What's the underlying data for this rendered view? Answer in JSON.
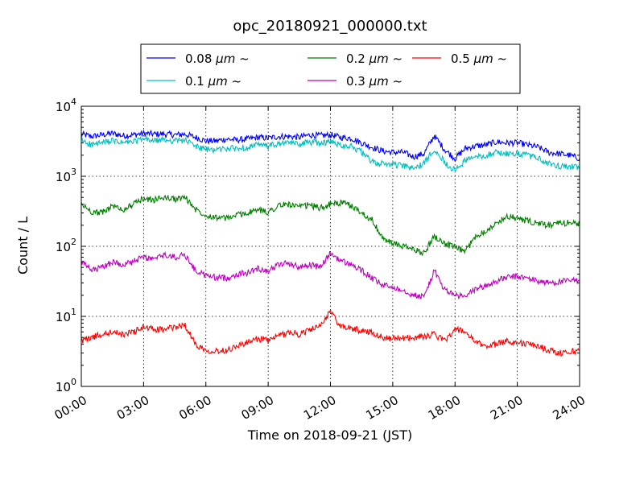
{
  "chart_data": {
    "type": "line",
    "title": "opc_20180921_000000.txt",
    "xlabel": "Time on 2018-09-21 (JST)",
    "ylabel": "Count / L",
    "x_unit": "hours",
    "xlim": [
      0,
      24
    ],
    "ylim": [
      1,
      10000
    ],
    "yscale": "log",
    "grid": true,
    "legend_placement": "top-center",
    "x_ticks": [
      {
        "value": 0,
        "label": "00:00"
      },
      {
        "value": 3,
        "label": "03:00"
      },
      {
        "value": 6,
        "label": "06:00"
      },
      {
        "value": 9,
        "label": "09:00"
      },
      {
        "value": 12,
        "label": "12:00"
      },
      {
        "value": 15,
        "label": "15:00"
      },
      {
        "value": 18,
        "label": "18:00"
      },
      {
        "value": 21,
        "label": "21:00"
      },
      {
        "value": 24,
        "label": "24:00"
      }
    ],
    "y_ticks": [
      {
        "value": 1,
        "base": "10",
        "exp": "0"
      },
      {
        "value": 10,
        "base": "10",
        "exp": "1"
      },
      {
        "value": 100,
        "base": "10",
        "exp": "2"
      },
      {
        "value": 1000,
        "base": "10",
        "exp": "3"
      },
      {
        "value": 10000,
        "base": "10",
        "exp": "4"
      }
    ],
    "x": [
      0,
      0.5,
      1,
      1.5,
      2,
      2.5,
      3,
      3.5,
      4,
      4.5,
      5,
      5.5,
      6,
      6.5,
      7,
      7.5,
      8,
      8.5,
      9,
      9.5,
      10,
      10.5,
      11,
      11.5,
      12,
      12.5,
      13,
      13.5,
      14,
      14.5,
      15,
      15.5,
      16,
      16.5,
      17,
      17.5,
      18,
      18.5,
      19,
      19.5,
      20,
      20.5,
      21,
      21.5,
      22,
      22.5,
      23,
      23.5,
      24
    ],
    "series": [
      {
        "name": "0.08",
        "unit": "μm",
        "suffix": "~",
        "color": "#0000ff",
        "values": [
          4000,
          3700,
          3900,
          4100,
          3800,
          3900,
          4100,
          4000,
          4000,
          3900,
          4000,
          3600,
          3200,
          3200,
          3400,
          3300,
          3400,
          3600,
          3500,
          3700,
          3700,
          3600,
          3900,
          3800,
          3900,
          3600,
          3500,
          3000,
          2600,
          2300,
          2200,
          2200,
          1900,
          2100,
          3800,
          2400,
          1800,
          2500,
          2700,
          2800,
          3100,
          3000,
          3000,
          2800,
          2600,
          2200,
          2100,
          2000,
          1800
        ]
      },
      {
        "name": "0.1",
        "unit": "μm",
        "suffix": "~",
        "color": "#00bfbf",
        "values": [
          3300,
          2800,
          3000,
          3200,
          3000,
          3100,
          3400,
          3200,
          3300,
          3200,
          3300,
          2700,
          2400,
          2400,
          2500,
          2500,
          2600,
          2800,
          2700,
          2900,
          3000,
          2900,
          3100,
          3000,
          3100,
          2800,
          2700,
          2200,
          1600,
          1500,
          1500,
          1400,
          1300,
          1500,
          2500,
          1600,
          1200,
          1700,
          1900,
          2000,
          2200,
          2100,
          2100,
          2000,
          1800,
          1500,
          1400,
          1400,
          1300
        ]
      },
      {
        "name": "0.2",
        "unit": "μm",
        "suffix": "~",
        "color": "#007f00",
        "values": [
          400,
          310,
          300,
          380,
          330,
          400,
          480,
          460,
          500,
          470,
          500,
          340,
          280,
          260,
          250,
          280,
          300,
          330,
          310,
          380,
          400,
          360,
          390,
          350,
          400,
          420,
          380,
          300,
          240,
          130,
          110,
          100,
          90,
          80,
          140,
          110,
          95,
          85,
          140,
          170,
          210,
          270,
          250,
          230,
          210,
          200,
          210,
          220,
          210
        ]
      },
      {
        "name": "0.3",
        "unit": "μm",
        "suffix": "~",
        "color": "#bf00bf",
        "values": [
          60,
          45,
          50,
          60,
          55,
          60,
          70,
          65,
          75,
          70,
          75,
          45,
          38,
          36,
          35,
          40,
          42,
          48,
          45,
          55,
          58,
          50,
          55,
          50,
          80,
          62,
          55,
          45,
          35,
          28,
          26,
          24,
          20,
          19,
          45,
          24,
          20,
          19,
          25,
          27,
          32,
          36,
          37,
          35,
          32,
          30,
          31,
          32,
          33
        ]
      },
      {
        "name": "0.5",
        "unit": "μm",
        "suffix": "~",
        "color": "#ff0000",
        "values": [
          4.5,
          5.0,
          5.5,
          6.0,
          5.5,
          6.0,
          7.0,
          6.5,
          6.5,
          7.0,
          7.5,
          4.0,
          3.3,
          3.2,
          3.3,
          3.8,
          4.2,
          4.8,
          4.5,
          5.2,
          6.0,
          5.5,
          6.5,
          7.0,
          12.0,
          7.0,
          6.8,
          6.2,
          6.0,
          5.0,
          4.8,
          4.9,
          5.0,
          5.2,
          5.5,
          4.5,
          6.5,
          6.0,
          4.2,
          3.8,
          4.0,
          4.5,
          4.2,
          4.0,
          3.8,
          3.3,
          3.0,
          3.1,
          3.3
        ]
      }
    ]
  }
}
